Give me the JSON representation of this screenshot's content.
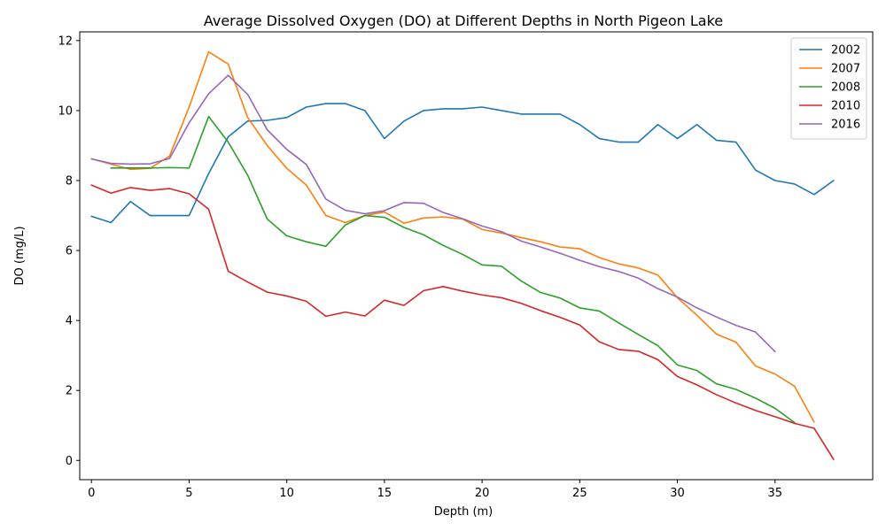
{
  "chart_data": {
    "type": "line",
    "title": "Average Dissolved Oxygen (DO) at Different Depths in North Pigeon Lake",
    "xlabel": "Depth (m)",
    "ylabel": "DO (mg/L)",
    "xlim": [
      -0.6,
      40.0
    ],
    "ylim": [
      -0.55,
      12.25
    ],
    "xticks": [
      0,
      5,
      10,
      15,
      20,
      25,
      30,
      35
    ],
    "yticks": [
      0,
      2,
      4,
      6,
      8,
      10,
      12
    ],
    "grid": false,
    "legend": "top-right",
    "series": [
      {
        "name": "2002",
        "color": "#1f77b4",
        "x": [
          0,
          1,
          2,
          3,
          4,
          5,
          6,
          7,
          8,
          9,
          10,
          11,
          12,
          13,
          14,
          15,
          16,
          17,
          18,
          19,
          20,
          21,
          22,
          23,
          24,
          25,
          26,
          27,
          28,
          29,
          30,
          31,
          32,
          33,
          34,
          35,
          36,
          37,
          38
        ],
        "y": [
          6.98,
          6.8,
          7.4,
          7.0,
          7.0,
          7.0,
          8.2,
          9.25,
          9.7,
          9.72,
          9.8,
          10.1,
          10.2,
          10.2,
          10.0,
          9.2,
          9.7,
          10.0,
          10.05,
          10.05,
          10.1,
          10.0,
          9.9,
          9.9,
          9.9,
          9.6,
          9.2,
          9.1,
          9.1,
          9.6,
          9.2,
          9.6,
          9.15,
          9.1,
          8.3,
          8.0,
          7.9,
          7.6,
          8.0
        ]
      },
      {
        "name": "2007",
        "color": "#ff7f0e",
        "x": [
          0,
          1,
          2,
          3,
          4,
          5,
          6,
          7,
          8,
          9,
          10,
          11,
          12,
          13,
          14,
          15,
          16,
          17,
          18,
          19,
          20,
          21,
          22,
          23,
          24,
          25,
          26,
          27,
          28,
          29,
          30,
          31,
          32,
          33,
          34,
          35,
          36,
          37
        ],
        "y": [
          8.62,
          8.47,
          8.32,
          8.35,
          8.7,
          10.1,
          11.68,
          11.33,
          9.8,
          9.0,
          8.35,
          7.87,
          7.0,
          6.8,
          7.0,
          7.1,
          6.78,
          6.93,
          6.96,
          6.9,
          6.6,
          6.5,
          6.37,
          6.25,
          6.1,
          6.05,
          5.8,
          5.62,
          5.5,
          5.3,
          4.65,
          4.15,
          3.61,
          3.38,
          2.7,
          2.47,
          2.12,
          1.1
        ]
      },
      {
        "name": "2008",
        "color": "#2ca02c",
        "x": [
          1,
          2,
          3,
          4,
          5,
          6,
          7,
          8,
          9,
          10,
          11,
          12,
          13,
          14,
          15,
          16,
          17,
          18,
          19,
          20,
          21,
          22,
          23,
          24,
          25,
          26,
          27,
          28,
          29,
          30,
          31,
          32,
          33,
          34,
          35,
          36
        ],
        "y": [
          8.36,
          8.36,
          8.36,
          8.37,
          8.36,
          9.83,
          9.1,
          8.15,
          6.9,
          6.42,
          6.25,
          6.12,
          6.73,
          7.0,
          6.95,
          6.66,
          6.45,
          6.15,
          5.89,
          5.59,
          5.55,
          5.13,
          4.8,
          4.64,
          4.36,
          4.27,
          3.93,
          3.6,
          3.28,
          2.73,
          2.57,
          2.19,
          2.03,
          1.78,
          1.49,
          1.08
        ]
      },
      {
        "name": "2010",
        "color": "#d62728",
        "x": [
          0,
          1,
          2,
          3,
          4,
          5,
          6,
          7,
          8,
          9,
          10,
          11,
          12,
          13,
          14,
          15,
          16,
          17,
          18,
          19,
          20,
          21,
          22,
          23,
          24,
          25,
          26,
          27,
          28,
          29,
          30,
          31,
          32,
          33,
          34,
          35,
          36,
          37,
          38
        ],
        "y": [
          7.87,
          7.64,
          7.8,
          7.72,
          7.77,
          7.62,
          7.18,
          5.41,
          5.1,
          4.81,
          4.7,
          4.55,
          4.12,
          4.24,
          4.13,
          4.58,
          4.43,
          4.85,
          4.97,
          4.84,
          4.73,
          4.65,
          4.49,
          4.28,
          4.09,
          3.87,
          3.39,
          3.17,
          3.12,
          2.88,
          2.4,
          2.16,
          1.88,
          1.64,
          1.43,
          1.25,
          1.06,
          0.92,
          0.03
        ]
      },
      {
        "name": "2016",
        "color": "#9467bd",
        "x": [
          0,
          1,
          2,
          3,
          4,
          5,
          6,
          7,
          8,
          9,
          10,
          11,
          12,
          13,
          14,
          15,
          16,
          17,
          18,
          19,
          20,
          21,
          22,
          23,
          24,
          25,
          26,
          27,
          28,
          29,
          30,
          31,
          32,
          33,
          34,
          35
        ],
        "y": [
          8.62,
          8.49,
          8.47,
          8.48,
          8.63,
          9.65,
          10.48,
          11.01,
          10.46,
          9.45,
          8.89,
          8.46,
          7.47,
          7.15,
          7.05,
          7.14,
          7.37,
          7.35,
          7.09,
          6.91,
          6.7,
          6.54,
          6.27,
          6.1,
          5.92,
          5.72,
          5.54,
          5.4,
          5.21,
          4.91,
          4.67,
          4.36,
          4.1,
          3.86,
          3.67,
          3.11
        ]
      }
    ]
  }
}
